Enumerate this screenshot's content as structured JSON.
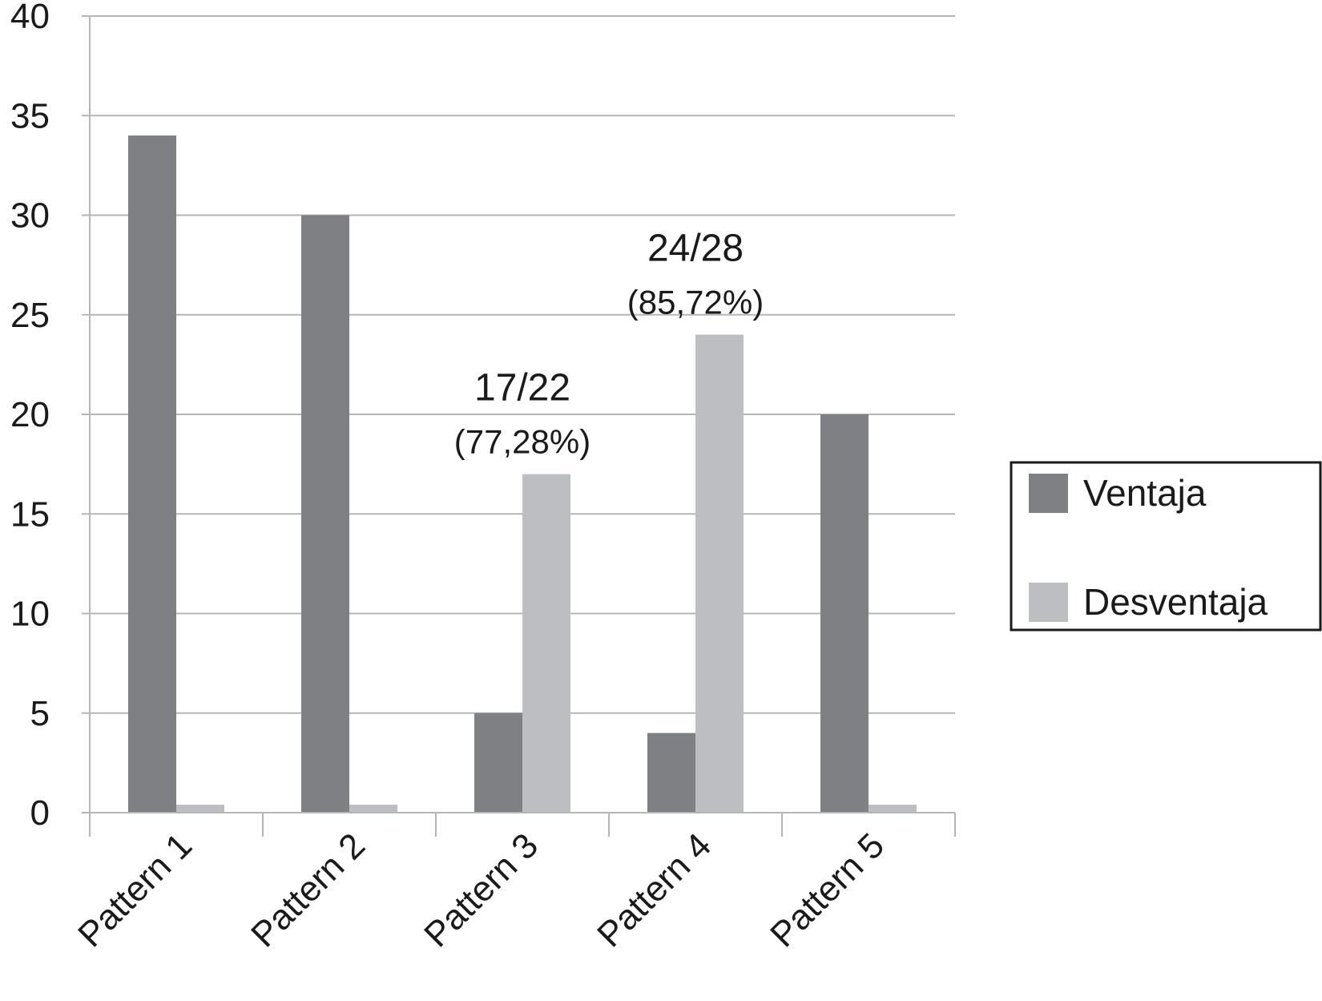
{
  "chart_data": {
    "type": "bar",
    "categories": [
      "Pattern 1",
      "Pattern 2",
      "Pattern 3",
      "Pattern 4",
      "Pattern 5"
    ],
    "series": [
      {
        "name": "Ventaja",
        "values": [
          34,
          30,
          5,
          4,
          20
        ],
        "color": "#7f8083"
      },
      {
        "name": "Desventaja",
        "values": [
          0.4,
          0.4,
          17,
          24,
          0.4
        ],
        "color": "#bdbec1"
      }
    ],
    "ylim": [
      0,
      40
    ],
    "yticks": [
      0,
      5,
      10,
      15,
      20,
      25,
      30,
      35,
      40
    ],
    "grid": true,
    "legend_position": "right",
    "annotations": [
      {
        "category": "Pattern 3",
        "line1": "17/22",
        "line2": "(77,28%)"
      },
      {
        "category": "Pattern 4",
        "line1": "24/28",
        "line2": "(85,72%)"
      }
    ]
  }
}
